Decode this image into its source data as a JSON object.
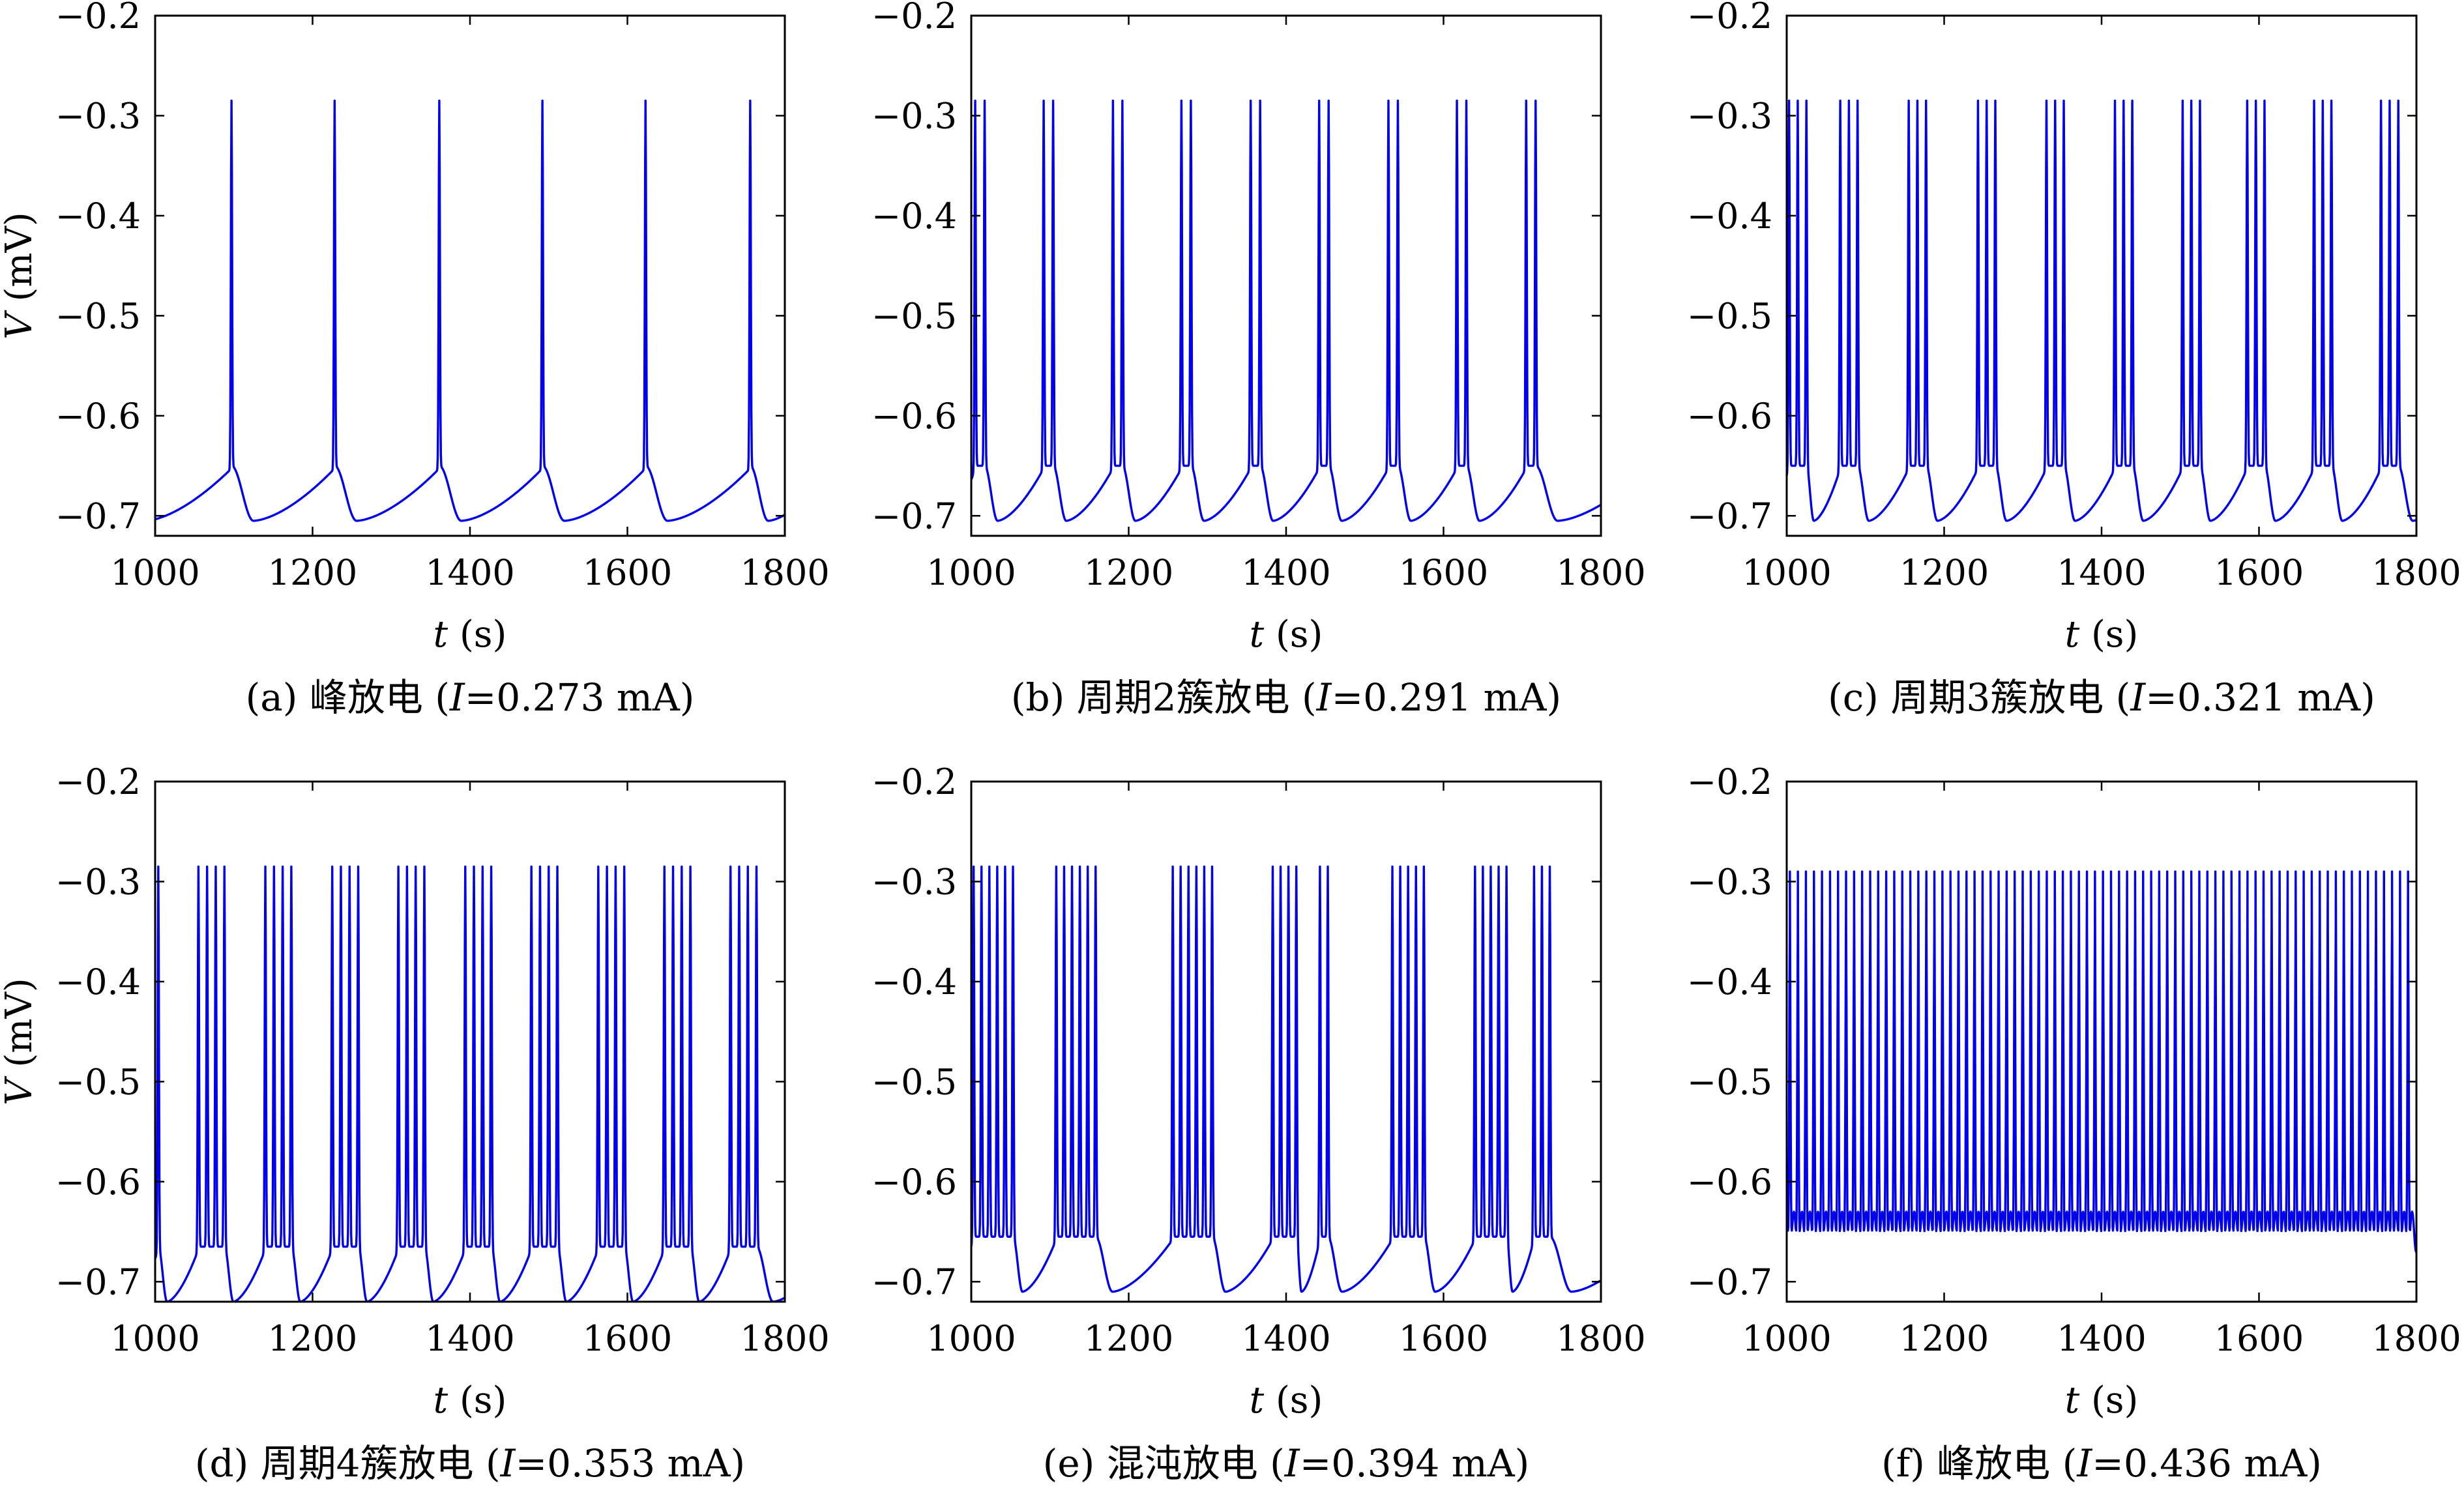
{
  "figure": {
    "line_color": "#0000ee",
    "axis_color": "#000000"
  },
  "chart_data": [
    {
      "id": "a",
      "type": "line",
      "pattern": "periodic_spiking",
      "caption": "(a) 峰放电 (I=0.273 mA)",
      "caption_parts": {
        "prefix": "(a) 峰放电 (",
        "var": "I",
        "rest": "=0.273 mA)"
      },
      "xlabel": {
        "var": "t",
        "unit": " (s)"
      },
      "ylabel": {
        "var": "V",
        "unit": " (mV)"
      },
      "show_ylabel": true,
      "xlim": [
        1000,
        1800
      ],
      "ylim": [
        -0.72,
        -0.2
      ],
      "xticks": [
        1000,
        1200,
        1400,
        1600,
        1800
      ],
      "xtick_labels": [
        "1000",
        "1200",
        "1400",
        "1600",
        "1800"
      ],
      "yticks": [
        -0.7,
        -0.6,
        -0.5,
        -0.4,
        -0.3,
        -0.2
      ],
      "ytick_labels": [
        "−0.7",
        "−0.6",
        "−0.5",
        "−0.4",
        "−0.3",
        "−0.2"
      ],
      "spike_peak": -0.285,
      "min_value": -0.705,
      "bursts": [
        {
          "start": 1097,
          "spikes": 1
        },
        {
          "start": 1228,
          "spikes": 1
        },
        {
          "start": 1361,
          "spikes": 1
        },
        {
          "start": 1492,
          "spikes": 1
        },
        {
          "start": 1623,
          "spikes": 1
        },
        {
          "start": 1756,
          "spikes": 1
        }
      ],
      "spike_interval": 0
    },
    {
      "id": "b",
      "type": "line",
      "pattern": "period_2_bursting",
      "caption": "(b) 周期2簇放电 (I=0.291 mA)",
      "caption_parts": {
        "prefix": "(b) 周期2簇放电 (",
        "var": "I",
        "rest": "=0.291 mA)"
      },
      "xlabel": {
        "var": "t",
        "unit": " (s)"
      },
      "ylabel": {
        "var": "V",
        "unit": " (mV)"
      },
      "show_ylabel": false,
      "xlim": [
        1000,
        1800
      ],
      "ylim": [
        -0.72,
        -0.2
      ],
      "xticks": [
        1000,
        1200,
        1400,
        1600,
        1800
      ],
      "xtick_labels": [
        "1000",
        "1200",
        "1400",
        "1600",
        "1800"
      ],
      "yticks": [
        -0.7,
        -0.6,
        -0.5,
        -0.4,
        -0.3,
        -0.2
      ],
      "ytick_labels": [
        "−0.7",
        "−0.6",
        "−0.5",
        "−0.4",
        "−0.3",
        "−0.2"
      ],
      "spike_peak": -0.285,
      "min_value": -0.705,
      "bursts": [
        {
          "start": 1005,
          "spikes": 2
        },
        {
          "start": 1092,
          "spikes": 2
        },
        {
          "start": 1180,
          "spikes": 2
        },
        {
          "start": 1267,
          "spikes": 2
        },
        {
          "start": 1355,
          "spikes": 2
        },
        {
          "start": 1442,
          "spikes": 2
        },
        {
          "start": 1530,
          "spikes": 2
        },
        {
          "start": 1617,
          "spikes": 2
        },
        {
          "start": 1705,
          "spikes": 2
        }
      ],
      "spike_interval": 12
    },
    {
      "id": "c",
      "type": "line",
      "pattern": "period_3_bursting",
      "caption": "(c) 周期3簇放电 (I=0.321 mA)",
      "caption_parts": {
        "prefix": "(c) 周期3簇放电 (",
        "var": "I",
        "rest": "=0.321 mA)"
      },
      "xlabel": {
        "var": "t",
        "unit": " (s)"
      },
      "ylabel": {
        "var": "V",
        "unit": " (mV)"
      },
      "show_ylabel": false,
      "xlim": [
        1000,
        1800
      ],
      "ylim": [
        -0.72,
        -0.2
      ],
      "xticks": [
        1000,
        1200,
        1400,
        1600,
        1800
      ],
      "xtick_labels": [
        "1000",
        "1200",
        "1400",
        "1600",
        "1800"
      ],
      "yticks": [
        -0.7,
        -0.6,
        -0.5,
        -0.4,
        -0.3,
        -0.2
      ],
      "ytick_labels": [
        "−0.7",
        "−0.6",
        "−0.5",
        "−0.4",
        "−0.3",
        "−0.2"
      ],
      "spike_peak": -0.285,
      "min_value": -0.705,
      "bursts": [
        {
          "start": 1003,
          "spikes": 3
        },
        {
          "start": 1068,
          "spikes": 3
        },
        {
          "start": 1155,
          "spikes": 3
        },
        {
          "start": 1243,
          "spikes": 3
        },
        {
          "start": 1330,
          "spikes": 3
        },
        {
          "start": 1417,
          "spikes": 3
        },
        {
          "start": 1503,
          "spikes": 3
        },
        {
          "start": 1585,
          "spikes": 3
        },
        {
          "start": 1670,
          "spikes": 3
        },
        {
          "start": 1755,
          "spikes": 3
        }
      ],
      "spike_interval": 11
    },
    {
      "id": "d",
      "type": "line",
      "pattern": "period_4_bursting",
      "caption": "(d) 周期4簇放电 (I=0.353 mA)",
      "caption_parts": {
        "prefix": "(d) 周期4簇放电 (",
        "var": "I",
        "rest": "=0.353 mA)"
      },
      "xlabel": {
        "var": "t",
        "unit": " (s)"
      },
      "ylabel": {
        "var": "V",
        "unit": " (mV)"
      },
      "show_ylabel": true,
      "xlim": [
        1000,
        1800
      ],
      "ylim": [
        -0.72,
        -0.2
      ],
      "xticks": [
        1000,
        1200,
        1400,
        1600,
        1800
      ],
      "xtick_labels": [
        "1000",
        "1200",
        "1400",
        "1600",
        "1800"
      ],
      "yticks": [
        -0.7,
        -0.6,
        -0.5,
        -0.4,
        -0.3,
        -0.2
      ],
      "ytick_labels": [
        "−0.7",
        "−0.6",
        "−0.5",
        "−0.4",
        "−0.3",
        "−0.2"
      ],
      "spike_peak": -0.285,
      "min_value": -0.72,
      "bursts": [
        {
          "start": 1004,
          "spikes": 1
        },
        {
          "start": 1055,
          "spikes": 4
        },
        {
          "start": 1140,
          "spikes": 4
        },
        {
          "start": 1225,
          "spikes": 4
        },
        {
          "start": 1309,
          "spikes": 4
        },
        {
          "start": 1394,
          "spikes": 4
        },
        {
          "start": 1478,
          "spikes": 4
        },
        {
          "start": 1563,
          "spikes": 4
        },
        {
          "start": 1647,
          "spikes": 4
        },
        {
          "start": 1731,
          "spikes": 4
        }
      ],
      "spike_interval": 11
    },
    {
      "id": "e",
      "type": "line",
      "pattern": "chaotic_bursting",
      "caption": "(e) 混沌放电 (I=0.394 mA)",
      "caption_parts": {
        "prefix": "(e) 混沌放电 (",
        "var": "I",
        "rest": "=0.394 mA)"
      },
      "xlabel": {
        "var": "t",
        "unit": " (s)"
      },
      "ylabel": {
        "var": "V",
        "unit": " (mV)"
      },
      "show_ylabel": false,
      "xlim": [
        1000,
        1800
      ],
      "ylim": [
        -0.72,
        -0.2
      ],
      "xticks": [
        1000,
        1200,
        1400,
        1600,
        1800
      ],
      "xtick_labels": [
        "1000",
        "1200",
        "1400",
        "1600",
        "1800"
      ],
      "yticks": [
        -0.7,
        -0.6,
        -0.5,
        -0.4,
        -0.3,
        -0.2
      ],
      "ytick_labels": [
        "−0.7",
        "−0.6",
        "−0.5",
        "−0.4",
        "−0.3",
        "−0.2"
      ],
      "spike_peak": -0.285,
      "min_value": -0.71,
      "bursts": [
        {
          "start": 1003,
          "spikes": 6
        },
        {
          "start": 1108,
          "spikes": 6
        },
        {
          "start": 1256,
          "spikes": 6
        },
        {
          "start": 1383,
          "spikes": 4
        },
        {
          "start": 1443,
          "spikes": 2
        },
        {
          "start": 1535,
          "spikes": 5
        },
        {
          "start": 1640,
          "spikes": 5
        },
        {
          "start": 1715,
          "spikes": 3
        }
      ],
      "spike_interval": 10
    },
    {
      "id": "f",
      "type": "line",
      "pattern": "tonic_spiking",
      "caption": "(f) 峰放电 (I=0.436 mA)",
      "caption_parts": {
        "prefix": "(f) 峰放电 (",
        "var": "I",
        "rest": "=0.436 mA)"
      },
      "xlabel": {
        "var": "t",
        "unit": " (s)"
      },
      "ylabel": {
        "var": "V",
        "unit": " (mV)"
      },
      "show_ylabel": false,
      "xlim": [
        1000,
        1800
      ],
      "ylim": [
        -0.72,
        -0.2
      ],
      "xticks": [
        1000,
        1200,
        1400,
        1600,
        1800
      ],
      "xtick_labels": [
        "1000",
        "1200",
        "1400",
        "1600",
        "1800"
      ],
      "yticks": [
        -0.7,
        -0.6,
        -0.5,
        -0.4,
        -0.3,
        -0.2
      ],
      "ytick_labels": [
        "−0.7",
        "−0.6",
        "−0.5",
        "−0.4",
        "−0.3",
        "−0.2"
      ],
      "spike_peak": -0.29,
      "min_value": -0.67,
      "tonic_start": 1004,
      "tonic_period": 10.2
    }
  ]
}
